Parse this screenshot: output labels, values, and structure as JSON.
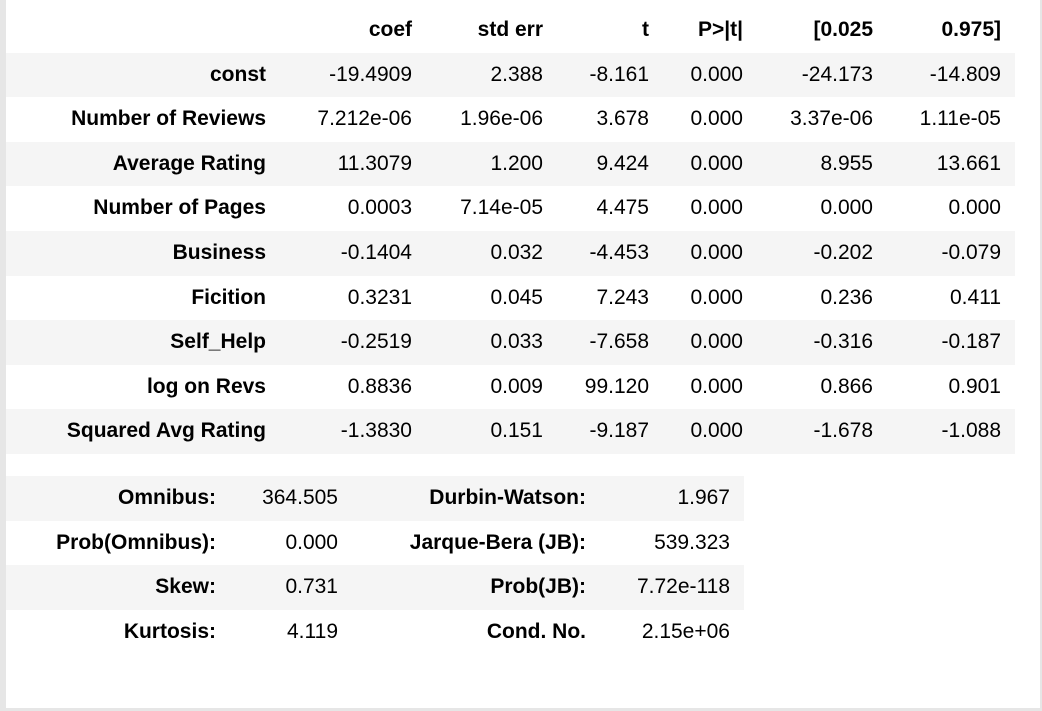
{
  "coef_table": {
    "headers": [
      "",
      "coef",
      "std err",
      "t",
      "P>|t|",
      "[0.025",
      "0.975]"
    ],
    "rows": [
      {
        "label": "const",
        "values": [
          "-19.4909",
          "2.388",
          "-8.161",
          "0.000",
          "-24.173",
          "-14.809"
        ]
      },
      {
        "label": "Number of Reviews",
        "values": [
          "7.212e-06",
          "1.96e-06",
          "3.678",
          "0.000",
          "3.37e-06",
          "1.11e-05"
        ]
      },
      {
        "label": "Average Rating",
        "values": [
          "11.3079",
          "1.200",
          "9.424",
          "0.000",
          "8.955",
          "13.661"
        ]
      },
      {
        "label": "Number of Pages",
        "values": [
          "0.0003",
          "7.14e-05",
          "4.475",
          "0.000",
          "0.000",
          "0.000"
        ]
      },
      {
        "label": "Business",
        "values": [
          "-0.1404",
          "0.032",
          "-4.453",
          "0.000",
          "-0.202",
          "-0.079"
        ]
      },
      {
        "label": "Ficition",
        "values": [
          "0.3231",
          "0.045",
          "7.243",
          "0.000",
          "0.236",
          "0.411"
        ]
      },
      {
        "label": "Self_Help",
        "values": [
          "-0.2519",
          "0.033",
          "-7.658",
          "0.000",
          "-0.316",
          "-0.187"
        ]
      },
      {
        "label": "log on Revs",
        "values": [
          "0.8836",
          "0.009",
          "99.120",
          "0.000",
          "0.866",
          "0.901"
        ]
      },
      {
        "label": "Squared Avg Rating",
        "values": [
          "-1.3830",
          "0.151",
          "-9.187",
          "0.000",
          "-1.678",
          "-1.088"
        ]
      }
    ]
  },
  "diagnostics": {
    "rows": [
      {
        "label1": "Omnibus:",
        "value1": "364.505",
        "label2": "Durbin-Watson:",
        "value2": "1.967"
      },
      {
        "label1": "Prob(Omnibus):",
        "value1": "0.000",
        "label2": "Jarque-Bera (JB):",
        "value2": "539.323"
      },
      {
        "label1": "Skew:",
        "value1": "0.731",
        "label2": "Prob(JB):",
        "value2": "7.72e-118"
      },
      {
        "label1": "Kurtosis:",
        "value1": "4.119",
        "label2": "Cond. No.",
        "value2": "2.15e+06"
      }
    ]
  }
}
